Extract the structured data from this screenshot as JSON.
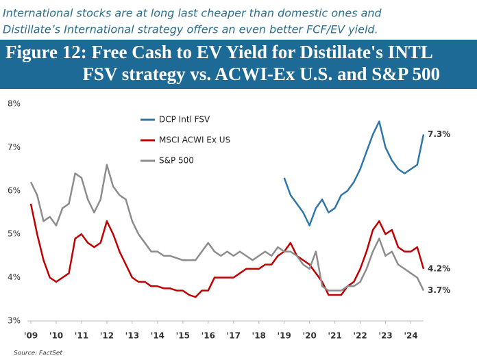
{
  "chart_data": {
    "type": "line",
    "subtitle": [
      "International stocks are at long last cheaper than domestic ones and",
      "Distillate’s International strategy offers an even better FCF/EV yield."
    ],
    "title": [
      "Figure 12: Free Cash to EV Yield for Distillate's INTL",
      "FSV strategy vs. ACWI-Ex U.S. and S&P 500"
    ],
    "source": "Source: FactSet",
    "x": [
      2009.0,
      2009.25,
      2009.5,
      2009.75,
      2010.0,
      2010.25,
      2010.5,
      2010.75,
      2011.0,
      2011.25,
      2011.5,
      2011.75,
      2012.0,
      2012.25,
      2012.5,
      2012.75,
      2013.0,
      2013.25,
      2013.5,
      2013.75,
      2014.0,
      2014.25,
      2014.5,
      2014.75,
      2015.0,
      2015.25,
      2015.5,
      2015.75,
      2016.0,
      2016.25,
      2016.5,
      2016.75,
      2017.0,
      2017.25,
      2017.5,
      2017.75,
      2018.0,
      2018.25,
      2018.5,
      2018.75,
      2019.0,
      2019.25,
      2019.5,
      2019.75,
      2020.0,
      2020.25,
      2020.5,
      2020.75,
      2021.0,
      2021.25,
      2021.5,
      2021.75,
      2022.0,
      2022.25,
      2022.5,
      2022.75,
      2023.0,
      2023.25,
      2023.5,
      2023.75,
      2024.0,
      2024.25,
      2024.5
    ],
    "series": [
      {
        "name": "DCP Intl FSV",
        "color": "#2e75a8",
        "values": [
          null,
          null,
          null,
          null,
          null,
          null,
          null,
          null,
          null,
          null,
          null,
          null,
          null,
          null,
          null,
          null,
          null,
          null,
          null,
          null,
          null,
          null,
          null,
          null,
          null,
          null,
          null,
          null,
          null,
          null,
          null,
          null,
          null,
          null,
          null,
          null,
          null,
          null,
          null,
          null,
          6.3,
          5.9,
          5.7,
          5.5,
          5.2,
          5.6,
          5.8,
          5.5,
          5.6,
          5.9,
          6.0,
          6.2,
          6.5,
          6.9,
          7.3,
          7.6,
          7.0,
          6.7,
          6.5,
          6.4,
          6.5,
          6.6,
          7.3
        ],
        "value_labels": [
          null,
          null,
          null,
          null,
          null,
          null,
          null,
          null,
          null,
          null,
          null,
          null,
          null,
          null,
          null,
          null,
          null,
          null,
          null,
          null,
          null,
          null,
          null,
          null,
          null,
          null,
          null,
          null,
          null,
          null,
          null,
          null,
          null,
          null,
          null,
          null,
          null,
          null,
          null,
          null,
          null,
          null,
          null,
          null,
          null,
          null,
          null,
          null,
          null,
          null,
          null,
          null,
          null,
          null,
          null,
          null,
          null,
          null,
          null,
          null,
          null,
          null,
          "7.3%"
        ]
      },
      {
        "name": "MSCI ACWI Ex US",
        "color": "#c00000",
        "values": [
          5.7,
          5.0,
          4.4,
          4.0,
          3.9,
          4.0,
          4.1,
          4.9,
          5.0,
          4.8,
          4.7,
          4.8,
          5.3,
          5.0,
          4.6,
          4.3,
          4.0,
          3.9,
          3.9,
          3.8,
          3.8,
          3.75,
          3.75,
          3.7,
          3.7,
          3.6,
          3.55,
          3.7,
          3.7,
          4.0,
          4.0,
          4.0,
          4.0,
          4.1,
          4.2,
          4.2,
          4.2,
          4.3,
          4.3,
          4.5,
          4.6,
          4.8,
          4.5,
          4.4,
          4.3,
          4.1,
          3.9,
          3.6,
          3.6,
          3.6,
          3.8,
          3.9,
          4.2,
          4.6,
          5.1,
          5.3,
          5.0,
          5.1,
          4.7,
          4.6,
          4.6,
          4.7,
          4.2
        ],
        "value_labels": [
          null,
          null,
          null,
          null,
          null,
          null,
          null,
          null,
          null,
          null,
          null,
          null,
          null,
          null,
          null,
          null,
          null,
          null,
          null,
          null,
          null,
          null,
          null,
          null,
          null,
          null,
          null,
          null,
          null,
          null,
          null,
          null,
          null,
          null,
          null,
          null,
          null,
          null,
          null,
          null,
          null,
          null,
          null,
          null,
          null,
          null,
          null,
          null,
          null,
          null,
          null,
          null,
          null,
          null,
          null,
          null,
          null,
          null,
          null,
          null,
          null,
          null,
          "4.2%"
        ]
      },
      {
        "name": "S&P 500",
        "color": "#8c8c8c",
        "values": [
          6.2,
          5.9,
          5.3,
          5.4,
          5.2,
          5.6,
          5.7,
          6.4,
          6.3,
          5.8,
          5.5,
          5.8,
          6.6,
          6.1,
          5.9,
          5.8,
          5.3,
          5.0,
          4.8,
          4.6,
          4.6,
          4.5,
          4.5,
          4.45,
          4.4,
          4.4,
          4.4,
          4.6,
          4.8,
          4.6,
          4.5,
          4.6,
          4.5,
          4.6,
          4.5,
          4.4,
          4.5,
          4.6,
          4.5,
          4.7,
          4.6,
          4.6,
          4.5,
          4.3,
          4.2,
          4.6,
          3.8,
          3.7,
          3.7,
          3.7,
          3.8,
          3.8,
          3.9,
          4.2,
          4.6,
          4.9,
          4.5,
          4.6,
          4.3,
          4.2,
          4.1,
          4.0,
          3.7
        ],
        "value_labels": [
          null,
          null,
          null,
          null,
          null,
          null,
          null,
          null,
          null,
          null,
          null,
          null,
          null,
          null,
          null,
          null,
          null,
          null,
          null,
          null,
          null,
          null,
          null,
          null,
          null,
          null,
          null,
          null,
          null,
          null,
          null,
          null,
          null,
          null,
          null,
          null,
          null,
          null,
          null,
          null,
          null,
          null,
          null,
          null,
          null,
          null,
          null,
          null,
          null,
          null,
          null,
          null,
          null,
          null,
          null,
          null,
          null,
          null,
          null,
          null,
          null,
          null,
          "3.7%"
        ]
      }
    ],
    "xlim": [
      2009,
      2024.5
    ],
    "xticks": [
      {
        "value": 2009,
        "label": "'09"
      },
      {
        "value": 2010,
        "label": "'10"
      },
      {
        "value": 2011,
        "label": "'11"
      },
      {
        "value": 2012,
        "label": "'12"
      },
      {
        "value": 2013,
        "label": "'13"
      },
      {
        "value": 2014,
        "label": "'14"
      },
      {
        "value": 2015,
        "label": "'15"
      },
      {
        "value": 2016,
        "label": "'16"
      },
      {
        "value": 2017,
        "label": "'17"
      },
      {
        "value": 2018,
        "label": "'18"
      },
      {
        "value": 2019,
        "label": "'19"
      },
      {
        "value": 2020,
        "label": "'20"
      },
      {
        "value": 2021,
        "label": "'21"
      },
      {
        "value": 2022,
        "label": "'22"
      },
      {
        "value": 2023,
        "label": "'23"
      },
      {
        "value": 2024,
        "label": "'24"
      }
    ],
    "ylim": [
      3,
      8
    ],
    "yticks": [
      {
        "value": 3,
        "label": "3%"
      },
      {
        "value": 4,
        "label": "4%"
      },
      {
        "value": 5,
        "label": "5%"
      },
      {
        "value": 6,
        "label": "6%"
      },
      {
        "value": 7,
        "label": "7%"
      },
      {
        "value": 8,
        "label": "8%"
      }
    ],
    "grid": false
  }
}
